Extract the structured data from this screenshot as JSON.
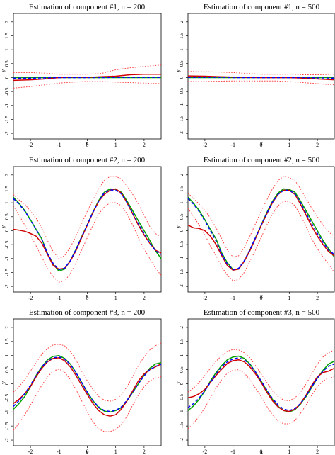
{
  "chart_data": [
    {
      "type": "line",
      "title": "Estimation of component #1, n = 200",
      "xlabel": "x",
      "ylabel": "y",
      "xlim": [
        -2.6,
        2.6
      ],
      "ylim": [
        -2.2,
        2.3
      ],
      "xticks": [
        -2,
        -1,
        0,
        1,
        2
      ],
      "yticks": [
        -2,
        -1.5,
        -1,
        -0.5,
        0,
        0.5,
        1,
        1.5,
        2
      ],
      "x": [
        -2.6,
        -2,
        -1.5,
        -1,
        -0.5,
        0,
        0.5,
        1,
        1.5,
        2,
        2.6
      ],
      "series": [
        {
          "color": "#00a000",
          "style": "solid",
          "values": [
            0,
            0,
            0,
            0,
            0,
            0,
            0,
            0,
            0,
            0,
            0
          ]
        },
        {
          "color": "#0000ff",
          "style": "dashed",
          "values": [
            -0.02,
            -0.02,
            -0.01,
            0,
            0,
            0,
            0,
            0.01,
            0.01,
            0.01,
            0.01
          ]
        },
        {
          "color": "#d00000",
          "style": "solid",
          "values": [
            -0.1,
            -0.08,
            -0.05,
            0,
            0.02,
            0.01,
            0.03,
            0.05,
            0.1,
            0.12,
            0.12
          ]
        },
        {
          "color": "#ff4040",
          "style": "dotted",
          "values": [
            0.18,
            0.18,
            0.16,
            0.12,
            0.12,
            0.12,
            0.15,
            0.28,
            0.35,
            0.4,
            0.45
          ]
        },
        {
          "color": "#ff4040",
          "style": "dotted",
          "values": [
            -0.38,
            -0.32,
            -0.26,
            -0.2,
            -0.16,
            -0.14,
            -0.14,
            -0.16,
            -0.18,
            -0.2,
            -0.22
          ]
        }
      ]
    },
    {
      "type": "line",
      "title": "Estimation of component #1, n = 500",
      "xlabel": "x",
      "ylabel": "y",
      "xlim": [
        -2.6,
        2.6
      ],
      "ylim": [
        -2.2,
        2.3
      ],
      "xticks": [
        -2,
        -1,
        0,
        1,
        2
      ],
      "yticks": [
        -2,
        -1.5,
        -1,
        -0.5,
        0,
        0.5,
        1,
        1.5,
        2
      ],
      "x": [
        -2.6,
        -2,
        -1.5,
        -1,
        -0.5,
        0,
        0.5,
        1,
        1.5,
        2,
        2.6
      ],
      "series": [
        {
          "color": "#00a000",
          "style": "solid",
          "values": [
            0,
            0,
            0,
            0,
            0,
            0,
            0,
            0,
            0,
            0,
            0
          ]
        },
        {
          "color": "#0000ff",
          "style": "dashed",
          "values": [
            0.01,
            0.01,
            0.01,
            0,
            0,
            0,
            0,
            0,
            0,
            -0.01,
            -0.02
          ]
        },
        {
          "color": "#d00000",
          "style": "solid",
          "values": [
            0.06,
            0.05,
            0.03,
            0.02,
            0.01,
            0,
            0,
            0,
            -0.02,
            -0.05,
            -0.08
          ]
        },
        {
          "color": "#ff4040",
          "style": "dotted",
          "values": [
            0.22,
            0.21,
            0.2,
            0.18,
            0.15,
            0.12,
            0.12,
            0.12,
            0.1,
            0.1,
            0.12
          ]
        },
        {
          "color": "#ff4040",
          "style": "dotted",
          "values": [
            -0.14,
            -0.14,
            -0.13,
            -0.12,
            -0.12,
            -0.12,
            -0.12,
            -0.14,
            -0.18,
            -0.22,
            -0.26
          ]
        }
      ]
    },
    {
      "type": "line",
      "title": "Estimation of component #2, n = 200",
      "xlabel": "x",
      "ylabel": "y",
      "xlim": [
        -2.6,
        2.6
      ],
      "ylim": [
        -2.2,
        2.3
      ],
      "xticks": [
        -2,
        -1,
        0,
        1,
        2
      ],
      "yticks": [
        -2,
        -1.5,
        -1,
        -0.5,
        0,
        0.5,
        1,
        1.5,
        2
      ],
      "x": [
        -2.6,
        -2.4,
        -2.2,
        -2,
        -1.8,
        -1.6,
        -1.4,
        -1.2,
        -1,
        -0.8,
        -0.6,
        -0.4,
        -0.2,
        0,
        0.2,
        0.4,
        0.6,
        0.8,
        1,
        1.2,
        1.4,
        1.6,
        1.8,
        2,
        2.2,
        2.4,
        2.6
      ],
      "series": [
        {
          "color": "#00a000",
          "style": "solid",
          "values": [
            1.2,
            0.98,
            0.72,
            0.39,
            0.04,
            -0.3,
            -0.82,
            -1.2,
            -1.45,
            -1.38,
            -1.08,
            -0.67,
            -0.22,
            0.22,
            0.67,
            1.08,
            1.38,
            1.5,
            1.48,
            1.38,
            1.06,
            0.71,
            0.35,
            0.0,
            -0.35,
            -0.72,
            -1.0
          ]
        },
        {
          "color": "#0000ff",
          "style": "dashed",
          "values": [
            1.15,
            0.95,
            0.7,
            0.38,
            0.05,
            -0.32,
            -0.82,
            -1.18,
            -1.4,
            -1.35,
            -1.08,
            -0.68,
            -0.22,
            0.2,
            0.66,
            1.06,
            1.36,
            1.46,
            1.45,
            1.32,
            1.0,
            0.62,
            0.25,
            -0.1,
            -0.45,
            -0.72,
            -0.85
          ]
        },
        {
          "color": "#d00000",
          "style": "solid",
          "values": [
            0.05,
            0.02,
            -0.02,
            -0.1,
            -0.2,
            -0.45,
            -0.85,
            -1.25,
            -1.38,
            -1.35,
            -1.1,
            -0.72,
            -0.25,
            0.2,
            0.65,
            1.05,
            1.3,
            1.45,
            1.5,
            1.35,
            1.0,
            0.6,
            0.2,
            -0.15,
            -0.45,
            -0.7,
            -0.8
          ]
        },
        {
          "color": "#ff4040",
          "style": "dotted",
          "values": [
            1.3,
            1.1,
            0.95,
            0.7,
            0.45,
            0.1,
            -0.35,
            -0.75,
            -1.0,
            -0.9,
            -0.6,
            -0.2,
            0.25,
            0.7,
            1.1,
            1.5,
            1.8,
            1.95,
            1.95,
            1.85,
            1.6,
            1.3,
            0.95,
            0.55,
            0.15,
            -0.1,
            -0.25
          ]
        },
        {
          "color": "#ff4040",
          "style": "dotted",
          "values": [
            0.9,
            0.55,
            0.2,
            -0.15,
            -0.55,
            -0.95,
            -1.35,
            -1.65,
            -1.85,
            -1.8,
            -1.55,
            -1.15,
            -0.7,
            -0.25,
            0.2,
            0.6,
            0.85,
            1.0,
            1.0,
            0.9,
            0.6,
            0.2,
            -0.25,
            -0.65,
            -1.0,
            -1.35,
            -1.6
          ]
        }
      ]
    },
    {
      "type": "line",
      "title": "Estimation of component #2, n = 500",
      "xlabel": "x",
      "ylabel": "y",
      "xlim": [
        -2.6,
        2.6
      ],
      "ylim": [
        -2.2,
        2.3
      ],
      "xticks": [
        -2,
        -1,
        0,
        1,
        2
      ],
      "yticks": [
        -2,
        -1.5,
        -1,
        -0.5,
        0,
        0.5,
        1,
        1.5,
        2
      ],
      "x": [
        -2.6,
        -2.4,
        -2.2,
        -2,
        -1.8,
        -1.6,
        -1.4,
        -1.2,
        -1,
        -0.8,
        -0.6,
        -0.4,
        -0.2,
        0,
        0.2,
        0.4,
        0.6,
        0.8,
        1,
        1.2,
        1.4,
        1.6,
        1.8,
        2,
        2.2,
        2.4,
        2.6
      ],
      "series": [
        {
          "color": "#00a000",
          "style": "solid",
          "values": [
            1.2,
            0.98,
            0.72,
            0.39,
            0.04,
            -0.3,
            -0.8,
            -1.15,
            -1.4,
            -1.38,
            -1.1,
            -0.7,
            -0.25,
            0.2,
            0.65,
            1.05,
            1.35,
            1.5,
            1.48,
            1.38,
            1.06,
            0.71,
            0.35,
            0.0,
            -0.35,
            -0.65,
            -0.95
          ]
        },
        {
          "color": "#0000ff",
          "style": "dashed",
          "values": [
            1.15,
            0.95,
            0.68,
            0.35,
            0.0,
            -0.38,
            -0.85,
            -1.2,
            -1.4,
            -1.35,
            -1.08,
            -0.68,
            -0.25,
            0.2,
            0.62,
            1.02,
            1.3,
            1.45,
            1.45,
            1.32,
            1.0,
            0.62,
            0.25,
            -0.1,
            -0.42,
            -0.7,
            -0.85
          ]
        },
        {
          "color": "#d00000",
          "style": "solid",
          "values": [
            0.2,
            0.1,
            0.08,
            0.0,
            -0.2,
            -0.5,
            -0.9,
            -1.25,
            -1.42,
            -1.38,
            -1.1,
            -0.72,
            -0.28,
            0.18,
            0.6,
            1.0,
            1.3,
            1.45,
            1.45,
            1.3,
            0.95,
            0.55,
            0.15,
            -0.2,
            -0.5,
            -0.75,
            -0.9
          ]
        },
        {
          "color": "#ff4040",
          "style": "dotted",
          "values": [
            1.35,
            1.15,
            0.95,
            0.72,
            0.45,
            0.1,
            -0.3,
            -0.7,
            -0.95,
            -0.9,
            -0.6,
            -0.2,
            0.25,
            0.7,
            1.1,
            1.5,
            1.8,
            1.95,
            1.9,
            1.8,
            1.5,
            1.15,
            0.8,
            0.5,
            0.2,
            -0.05,
            -0.2
          ]
        },
        {
          "color": "#ff4040",
          "style": "dotted",
          "values": [
            0.8,
            0.5,
            0.2,
            -0.15,
            -0.55,
            -0.9,
            -1.3,
            -1.6,
            -1.8,
            -1.75,
            -1.5,
            -1.1,
            -0.7,
            -0.25,
            0.2,
            0.6,
            0.9,
            1.05,
            1.05,
            0.9,
            0.55,
            0.15,
            -0.3,
            -0.65,
            -0.95,
            -1.2,
            -1.5
          ]
        }
      ]
    },
    {
      "type": "line",
      "title": "Estimation of component #3, n = 200",
      "xlabel": "x",
      "ylabel": "y",
      "xlim": [
        -2.6,
        2.6
      ],
      "ylim": [
        -2.2,
        2.3
      ],
      "xticks": [
        -2,
        -1,
        0,
        1,
        2
      ],
      "yticks": [
        -2,
        -1.5,
        -1,
        -0.5,
        0,
        0.5,
        1,
        1.5,
        2
      ],
      "x": [
        -2.6,
        -2.4,
        -2.2,
        -2,
        -1.8,
        -1.6,
        -1.4,
        -1.2,
        -1,
        -0.8,
        -0.6,
        -0.4,
        -0.2,
        0,
        0.2,
        0.4,
        0.6,
        0.8,
        1,
        1.2,
        1.4,
        1.6,
        1.8,
        2,
        2.2,
        2.4,
        2.6
      ],
      "series": [
        {
          "color": "#00a000",
          "style": "solid",
          "values": [
            -0.9,
            -0.7,
            -0.45,
            -0.1,
            0.3,
            0.6,
            0.85,
            0.97,
            1.0,
            0.9,
            0.7,
            0.4,
            0.05,
            -0.3,
            -0.6,
            -0.85,
            -0.97,
            -1.0,
            -0.95,
            -0.85,
            -0.6,
            -0.3,
            0.0,
            0.3,
            0.55,
            0.7,
            0.75
          ]
        },
        {
          "color": "#0000ff",
          "style": "dashed",
          "values": [
            -0.8,
            -0.6,
            -0.35,
            -0.05,
            0.3,
            0.6,
            0.8,
            0.92,
            0.95,
            0.88,
            0.68,
            0.4,
            0.05,
            -0.3,
            -0.6,
            -0.82,
            -0.95,
            -0.98,
            -0.95,
            -0.82,
            -0.58,
            -0.3,
            0.0,
            0.28,
            0.5,
            0.62,
            0.68
          ]
        },
        {
          "color": "#d00000",
          "style": "solid",
          "values": [
            -0.7,
            -0.55,
            -0.35,
            -0.1,
            0.25,
            0.55,
            0.78,
            0.9,
            0.92,
            0.82,
            0.6,
            0.3,
            -0.05,
            -0.38,
            -0.7,
            -0.95,
            -1.1,
            -1.15,
            -1.1,
            -0.9,
            -0.6,
            -0.25,
            0.1,
            0.35,
            0.5,
            0.6,
            0.7
          ]
        },
        {
          "color": "#ff4040",
          "style": "dotted",
          "values": [
            -0.3,
            -0.1,
            0.15,
            0.45,
            0.75,
            1.05,
            1.25,
            1.38,
            1.4,
            1.35,
            1.15,
            0.85,
            0.45,
            0.1,
            -0.2,
            -0.45,
            -0.58,
            -0.62,
            -0.55,
            -0.4,
            -0.1,
            0.25,
            0.65,
            0.95,
            1.2,
            1.35,
            1.45
          ]
        },
        {
          "color": "#ff4040",
          "style": "dotted",
          "values": [
            -1.65,
            -1.4,
            -1.1,
            -0.75,
            -0.4,
            -0.05,
            0.25,
            0.45,
            0.52,
            0.42,
            0.15,
            -0.2,
            -0.6,
            -1.0,
            -1.35,
            -1.6,
            -1.7,
            -1.7,
            -1.62,
            -1.45,
            -1.15,
            -0.75,
            -0.4,
            -0.1,
            0.1,
            0.2,
            0.25
          ]
        }
      ]
    },
    {
      "type": "line",
      "title": "Estimation of component #3, n = 500",
      "xlabel": "x",
      "ylabel": "y",
      "xlim": [
        -2.6,
        2.6
      ],
      "ylim": [
        -2.2,
        2.3
      ],
      "xticks": [
        -2,
        -1,
        0,
        1,
        2
      ],
      "yticks": [
        -2,
        -1.5,
        -1,
        -0.5,
        0,
        0.5,
        1,
        1.5,
        2
      ],
      "x": [
        -2.6,
        -2.4,
        -2.2,
        -2,
        -1.8,
        -1.6,
        -1.4,
        -1.2,
        -1,
        -0.8,
        -0.6,
        -0.4,
        -0.2,
        0,
        0.2,
        0.4,
        0.6,
        0.8,
        1,
        1.2,
        1.4,
        1.6,
        1.8,
        2,
        2.2,
        2.4,
        2.6
      ],
      "series": [
        {
          "color": "#00a000",
          "style": "solid",
          "values": [
            -0.95,
            -0.78,
            -0.55,
            -0.25,
            0.1,
            0.4,
            0.65,
            0.85,
            0.95,
            0.98,
            0.9,
            0.7,
            0.42,
            0.1,
            -0.25,
            -0.55,
            -0.8,
            -0.95,
            -1.0,
            -0.92,
            -0.72,
            -0.45,
            -0.12,
            0.2,
            0.48,
            0.7,
            0.8
          ]
        },
        {
          "color": "#0000ff",
          "style": "dashed",
          "values": [
            -0.85,
            -0.7,
            -0.5,
            -0.25,
            0.05,
            0.35,
            0.6,
            0.78,
            0.88,
            0.92,
            0.85,
            0.68,
            0.42,
            0.1,
            -0.22,
            -0.52,
            -0.75,
            -0.9,
            -0.95,
            -0.88,
            -0.7,
            -0.42,
            -0.1,
            0.2,
            0.45,
            0.62,
            0.7
          ]
        },
        {
          "color": "#d00000",
          "style": "solid",
          "values": [
            -0.5,
            -0.45,
            -0.35,
            -0.2,
            0.05,
            0.3,
            0.52,
            0.72,
            0.82,
            0.85,
            0.78,
            0.6,
            0.35,
            0.05,
            -0.3,
            -0.6,
            -0.82,
            -0.95,
            -0.98,
            -0.9,
            -0.7,
            -0.4,
            -0.05,
            0.25,
            0.4,
            0.45,
            0.55
          ]
        },
        {
          "color": "#ff4040",
          "style": "dotted",
          "values": [
            -0.3,
            -0.15,
            0.05,
            0.3,
            0.55,
            0.8,
            1.0,
            1.15,
            1.22,
            1.2,
            1.1,
            0.92,
            0.65,
            0.35,
            0.05,
            -0.25,
            -0.45,
            -0.58,
            -0.6,
            -0.5,
            -0.3,
            0.0,
            0.35,
            0.7,
            0.95,
            1.1,
            1.2
          ]
        },
        {
          "color": "#ff4040",
          "style": "dotted",
          "values": [
            -1.6,
            -1.4,
            -1.15,
            -0.85,
            -0.5,
            -0.15,
            0.15,
            0.38,
            0.48,
            0.5,
            0.38,
            0.15,
            -0.15,
            -0.45,
            -0.8,
            -1.1,
            -1.32,
            -1.42,
            -1.42,
            -1.3,
            -1.05,
            -0.75,
            -0.4,
            -0.1,
            0.1,
            0.2,
            0.25
          ]
        }
      ]
    }
  ]
}
